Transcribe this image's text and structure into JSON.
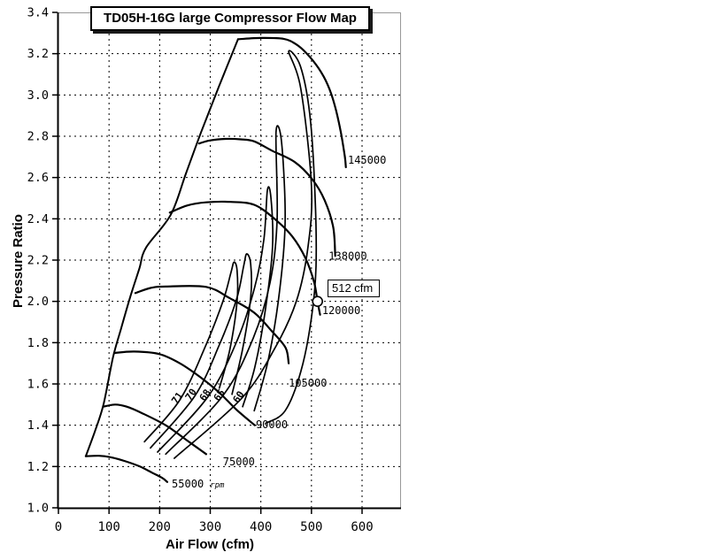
{
  "title": "TD05H-16G large Compressor Flow Map",
  "colors": {
    "background": "#ffffff",
    "curve": "#000000",
    "grid": "#000000",
    "frame": "#999999",
    "axis": "#000000",
    "marker_fill": "#ffffff"
  },
  "chart_data": {
    "type": "line",
    "title": "TD05H-16G large Compressor Flow Map",
    "xlabel": "Air Flow (cfm)",
    "ylabel": "Pressure Ratio",
    "xlim": [
      0,
      677
    ],
    "ylim": [
      1.0,
      3.4
    ],
    "x_ticks": [
      0,
      100,
      200,
      300,
      400,
      500,
      600
    ],
    "y_ticks": [
      1.0,
      1.2,
      1.4,
      1.6,
      1.8,
      2.0,
      2.2,
      2.4,
      2.6,
      2.8,
      3.0,
      3.2,
      3.4
    ],
    "grid": "dashed",
    "surge_line": [
      [
        54,
        1.25
      ],
      [
        72,
        1.37
      ],
      [
        89,
        1.5
      ],
      [
        108,
        1.73
      ],
      [
        124,
        1.87
      ],
      [
        143,
        2.03
      ],
      [
        160,
        2.16
      ],
      [
        173,
        2.26
      ],
      [
        222,
        2.42
      ],
      [
        252,
        2.62
      ],
      [
        282,
        2.82
      ],
      [
        317,
        3.04
      ],
      [
        355,
        3.27
      ]
    ],
    "speed_lines": [
      {
        "rpm": 55000,
        "label": "55000",
        "suffix": "rpm",
        "label_at": [
          224,
          1.115
        ],
        "points": [
          [
            54,
            1.25
          ],
          [
            80,
            1.252
          ],
          [
            103,
            1.245
          ],
          [
            133,
            1.225
          ],
          [
            161,
            1.2
          ],
          [
            185,
            1.17
          ],
          [
            205,
            1.145
          ],
          [
            215,
            1.125
          ]
        ]
      },
      {
        "rpm": 75000,
        "label": "75000",
        "suffix": "",
        "label_at": [
          325,
          1.223
        ],
        "points": [
          [
            89,
            1.49
          ],
          [
            112,
            1.5
          ],
          [
            135,
            1.49
          ],
          [
            164,
            1.46
          ],
          [
            212,
            1.4
          ],
          [
            252,
            1.33
          ],
          [
            292,
            1.26
          ]
        ]
      },
      {
        "rpm": 90000,
        "label": "90000",
        "suffix": "",
        "label_at": [
          390,
          1.402
        ],
        "points": [
          [
            110,
            1.75
          ],
          [
            150,
            1.757
          ],
          [
            199,
            1.745
          ],
          [
            240,
            1.7
          ],
          [
            282,
            1.63
          ],
          [
            317,
            1.56
          ],
          [
            352,
            1.475
          ],
          [
            388,
            1.4
          ]
        ]
      },
      {
        "rpm": 105000,
        "label": "105000",
        "suffix": "",
        "label_at": [
          455,
          1.604
        ],
        "points": [
          [
            152,
            2.04
          ],
          [
            182,
            2.065
          ],
          [
            212,
            2.072
          ],
          [
            292,
            2.07
          ],
          [
            339,
            2.015
          ],
          [
            387,
            1.945
          ],
          [
            422,
            1.855
          ],
          [
            449,
            1.775
          ],
          [
            455,
            1.7
          ]
        ]
      },
      {
        "rpm": 120000,
        "label": "120000",
        "suffix": "",
        "label_at": [
          521,
          1.956
        ],
        "points": [
          [
            220,
            2.43
          ],
          [
            255,
            2.465
          ],
          [
            292,
            2.48
          ],
          [
            340,
            2.482
          ],
          [
            387,
            2.468
          ],
          [
            427,
            2.4
          ],
          [
            462,
            2.315
          ],
          [
            488,
            2.21
          ],
          [
            505,
            2.095
          ],
          [
            512,
            2.0
          ],
          [
            517,
            1.935
          ]
        ]
      },
      {
        "rpm": 138000,
        "label": "138000",
        "suffix": "",
        "label_at": [
          534,
          2.22
        ],
        "points": [
          [
            278,
            2.765
          ],
          [
            300,
            2.78
          ],
          [
            330,
            2.787
          ],
          [
            360,
            2.785
          ],
          [
            387,
            2.775
          ],
          [
            422,
            2.73
          ],
          [
            467,
            2.675
          ],
          [
            502,
            2.59
          ],
          [
            526,
            2.49
          ],
          [
            543,
            2.36
          ],
          [
            547,
            2.22
          ]
        ]
      },
      {
        "rpm": 145000,
        "label": "145000",
        "suffix": "",
        "label_at": [
          572,
          2.684
        ],
        "points": [
          [
            355,
            3.27
          ],
          [
            400,
            3.276
          ],
          [
            445,
            3.272
          ],
          [
            470,
            3.245
          ],
          [
            491,
            3.2
          ],
          [
            514,
            3.13
          ],
          [
            532,
            3.05
          ],
          [
            546,
            2.95
          ],
          [
            558,
            2.82
          ],
          [
            566,
            2.7
          ],
          [
            568,
            2.65
          ]
        ]
      }
    ],
    "efficiency_islands": [
      {
        "value": "71",
        "label_at": [
          240,
          1.523
        ],
        "label_rotation": -55,
        "points": [
          [
            170,
            1.32
          ],
          [
            240,
            1.523
          ],
          [
            290,
            1.78
          ],
          [
            325,
            2.0
          ],
          [
            341,
            2.14
          ],
          [
            347,
            2.19
          ],
          [
            353,
            2.15
          ],
          [
            353,
            2.0
          ],
          [
            339,
            1.77
          ],
          [
            318,
            1.58
          ]
        ]
      },
      {
        "value": "70",
        "label_at": [
          267,
          1.54
        ],
        "label_rotation": -55,
        "points": [
          [
            182,
            1.29
          ],
          [
            269,
            1.54
          ],
          [
            318,
            1.79
          ],
          [
            352,
            2.01
          ],
          [
            366,
            2.17
          ],
          [
            372,
            2.23
          ],
          [
            380,
            2.18
          ],
          [
            380,
            2.02
          ],
          [
            364,
            1.77
          ],
          [
            343,
            1.55
          ]
        ]
      },
      {
        "value": "68",
        "label_at": [
          295,
          1.537
        ],
        "label_rotation": -55,
        "points": [
          [
            196,
            1.27
          ],
          [
            296,
            1.54
          ],
          [
            353,
            1.81
          ],
          [
            388,
            2.07
          ],
          [
            406,
            2.3
          ],
          [
            413,
            2.54
          ],
          [
            420,
            2.5
          ],
          [
            423,
            2.26
          ],
          [
            409,
            1.96
          ],
          [
            388,
            1.68
          ],
          [
            364,
            1.49
          ]
        ]
      },
      {
        "value": "65",
        "label_at": [
          323,
          1.537
        ],
        "label_rotation": -55,
        "points": [
          [
            212,
            1.26
          ],
          [
            324,
            1.54
          ],
          [
            383,
            1.81
          ],
          [
            418,
            2.09
          ],
          [
            432,
            2.39
          ],
          [
            430,
            2.82
          ],
          [
            441,
            2.77
          ],
          [
            448,
            2.39
          ],
          [
            437,
            2.05
          ],
          [
            415,
            1.72
          ],
          [
            387,
            1.47
          ]
        ]
      },
      {
        "value": "60",
        "label_at": [
          361,
          1.528
        ],
        "label_rotation": -55,
        "points": [
          [
            229,
            1.24
          ],
          [
            362,
            1.53
          ],
          [
            427,
            1.77
          ],
          [
            470,
            2.0
          ],
          [
            493,
            2.26
          ],
          [
            500,
            2.56
          ],
          [
            479,
            3.03
          ],
          [
            455,
            3.21
          ],
          [
            478,
            3.14
          ],
          [
            497,
            2.9
          ],
          [
            507,
            2.52
          ],
          [
            509,
            2.17
          ],
          [
            500,
            1.92
          ],
          [
            479,
            1.66
          ],
          [
            448,
            1.47
          ],
          [
            410,
            1.41
          ]
        ]
      }
    ],
    "marker": {
      "label": "512 cfm",
      "cfm": 512,
      "pressure_ratio": 2.0
    }
  }
}
